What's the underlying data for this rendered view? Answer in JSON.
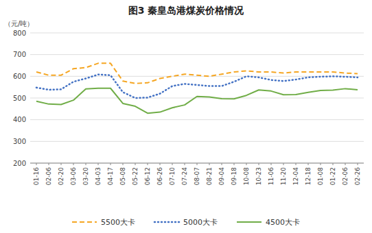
{
  "chart_data": {
    "type": "line",
    "title": "图3  秦皇岛港煤炭价格情况",
    "ylabel": "（元/吨）",
    "categories": [
      "01-16",
      "02-06",
      "02-20",
      "03-06",
      "03-20",
      "04-03",
      "04-17",
      "05-08",
      "05-22",
      "06-12",
      "06-26",
      "07-10",
      "07-24",
      "08-07",
      "08-21",
      "09-04",
      "09-18",
      "10-08",
      "10-23",
      "11-06",
      "11-20",
      "12-04",
      "12-18",
      "01-08",
      "01-22",
      "02-06",
      "02-26"
    ],
    "series": [
      {
        "name": "5500大卡",
        "color": "#f5a623",
        "line_style": "dashed",
        "values": [
          620,
          605,
          605,
          635,
          640,
          660,
          660,
          578,
          567,
          570,
          590,
          600,
          610,
          605,
          600,
          610,
          620,
          625,
          620,
          620,
          615,
          620,
          620,
          620,
          620,
          615,
          612
        ]
      },
      {
        "name": "5000大卡",
        "color": "#4472c4",
        "line_style": "dotted",
        "values": [
          548,
          538,
          540,
          575,
          590,
          608,
          605,
          527,
          500,
          502,
          520,
          555,
          565,
          560,
          555,
          555,
          575,
          600,
          595,
          583,
          578,
          585,
          595,
          598,
          600,
          598,
          595
        ]
      },
      {
        "name": "4500大卡",
        "color": "#70ad47",
        "line_style": "solid",
        "values": [
          485,
          472,
          470,
          490,
          542,
          545,
          545,
          475,
          462,
          430,
          435,
          455,
          468,
          507,
          505,
          497,
          496,
          512,
          537,
          532,
          515,
          516,
          526,
          535,
          536,
          543,
          538
        ]
      }
    ],
    "ylim": [
      200,
      800
    ],
    "yticks": [
      200,
      300,
      400,
      500,
      600,
      700,
      800
    ],
    "grid": true,
    "legend": "bottom"
  }
}
